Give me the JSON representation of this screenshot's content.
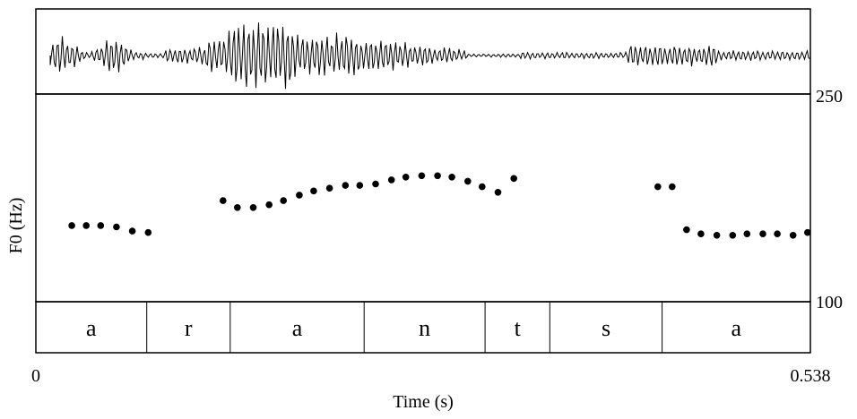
{
  "chart_data": {
    "type": "scatter",
    "xlabel": "Time (s)",
    "ylabel": "F0 (Hz)",
    "xlim": [
      0,
      0.538
    ],
    "ylim": [
      100,
      250
    ],
    "x_tick_labels": [
      "0",
      "0.538"
    ],
    "y_tick_labels": [
      "250",
      "100"
    ],
    "f0_points": {
      "x": [
        0.025,
        0.035,
        0.045,
        0.056,
        0.067,
        0.078,
        0.13,
        0.14,
        0.151,
        0.162,
        0.172,
        0.183,
        0.193,
        0.204,
        0.215,
        0.225,
        0.236,
        0.247,
        0.257,
        0.268,
        0.279,
        0.289,
        0.3,
        0.31,
        0.321,
        0.332,
        0.432,
        0.442,
        0.452,
        0.462,
        0.473,
        0.484,
        0.494,
        0.505,
        0.515,
        0.526,
        0.536
      ],
      "y": [
        155,
        155,
        155,
        154,
        151,
        150,
        173,
        168,
        168,
        170,
        173,
        177,
        180,
        182,
        184,
        184,
        185,
        188,
        190,
        191,
        191,
        190,
        187,
        183,
        179,
        189,
        183,
        183,
        152,
        149,
        148,
        148,
        149,
        149,
        149,
        148,
        150
      ]
    },
    "segments": {
      "labels": [
        "a",
        "r",
        "a",
        "n",
        "t",
        "s",
        "a"
      ],
      "boundaries_s": [
        0,
        0.077,
        0.135,
        0.228,
        0.312,
        0.357,
        0.435,
        0.538
      ]
    }
  }
}
